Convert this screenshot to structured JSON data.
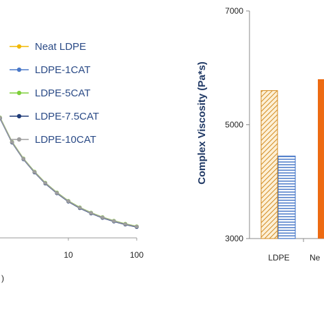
{
  "chart_data": [
    {
      "type": "line",
      "x_scale": "log",
      "x_ticks": [
        "10",
        "100"
      ],
      "xlabel_fragment": ")",
      "x": [
        1,
        1.5,
        2.2,
        3.2,
        4.6,
        6.8,
        10,
        14.7,
        21.5,
        31.6,
        46.4,
        68.1,
        100
      ],
      "legend_position": "top-right",
      "grid": false,
      "series": [
        {
          "name": "Neat LDPE",
          "color": "#f2b800",
          "values": [
            9650,
            7900,
            6700,
            5750,
            4950,
            4250,
            3650,
            3180,
            2800,
            2480,
            2220,
            2000,
            1820
          ]
        },
        {
          "name": "LDPE-1CAT",
          "color": "#4a78c8",
          "values": [
            9620,
            7880,
            6680,
            5730,
            4930,
            4230,
            3630,
            3160,
            2780,
            2460,
            2200,
            1980,
            1800
          ]
        },
        {
          "name": "LDPE-5CAT",
          "color": "#7ecf3a",
          "values": [
            9660,
            7910,
            6710,
            5760,
            4960,
            4260,
            3660,
            3190,
            2810,
            2490,
            2230,
            2010,
            1830
          ]
        },
        {
          "name": "LDPE-7.5CAT",
          "color": "#203c78",
          "values": [
            9600,
            7860,
            6660,
            5710,
            4910,
            4210,
            3610,
            3140,
            2760,
            2440,
            2180,
            1960,
            1780
          ]
        },
        {
          "name": "LDPE-10CAT",
          "color": "#9e9e9e",
          "values": [
            9640,
            7890,
            6690,
            5740,
            4940,
            4240,
            3640,
            3170,
            2790,
            2470,
            2210,
            1990,
            1810
          ]
        }
      ]
    },
    {
      "type": "bar",
      "ylabel": "Complex Viscosity (Pa*s)",
      "ylim": [
        3000,
        7000
      ],
      "y_ticks": [
        "3000",
        "5000",
        "7000"
      ],
      "categories": [
        "LDPE",
        "Ne"
      ],
      "series": [
        {
          "color": "#f0a830",
          "pattern": "diagonal-hatch",
          "values": [
            5600,
            null
          ]
        },
        {
          "color": "#3b6fc4",
          "pattern": "horizontal-lines",
          "values": [
            4450,
            null
          ]
        },
        {
          "color": "#ed6a12",
          "pattern": "solid",
          "values": [
            null,
            5800
          ]
        }
      ]
    }
  ]
}
